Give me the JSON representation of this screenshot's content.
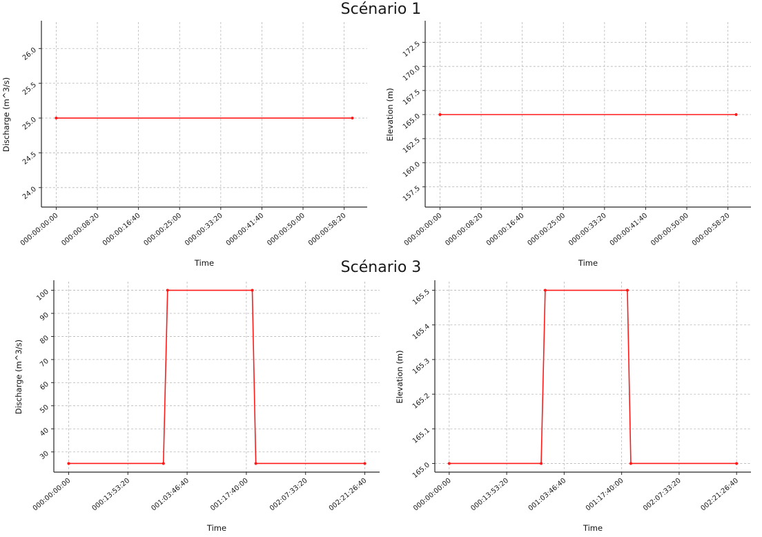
{
  "titles": {
    "scenario1": "Scénario 1",
    "scenario3": "Scénario 3"
  },
  "colors": {
    "line": "#ff1a1a",
    "grid": "#b5b5b5",
    "spine": "#262626",
    "text": "#1a1a1a"
  },
  "chart_data": [
    {
      "id": "scenario1-discharge",
      "type": "line",
      "title": "Scénario 1",
      "xlabel": "Time",
      "ylabel": "Discharge (m^3/s)",
      "grid": true,
      "legend": false,
      "line_color": "#ff1a1a",
      "xlim": [
        -180,
        3780
      ],
      "ylim": [
        23.72,
        26.38
      ],
      "xticks": [
        0,
        500,
        1000,
        1500,
        2000,
        2500,
        3000,
        3500
      ],
      "xtick_labels": [
        "000:00:00:00",
        "000:00:08:20",
        "000:00:16:40",
        "000:00:25:00",
        "000:00:33:20",
        "000:00:41:40",
        "000:00:50:00",
        "000:00:58:20"
      ],
      "yticks": [
        24.0,
        24.5,
        25.0,
        25.5,
        26.0
      ],
      "ytick_labels": [
        "24.0",
        "24.5",
        "25.0",
        "25.5",
        "26.0"
      ],
      "series": [
        {
          "name": "Discharge",
          "x": [
            0,
            3600
          ],
          "y": [
            25.0,
            25.0
          ]
        }
      ]
    },
    {
      "id": "scenario1-elevation",
      "type": "line",
      "title": "Scénario 1",
      "xlabel": "Time",
      "ylabel": "Elevation (m)",
      "grid": true,
      "legend": false,
      "line_color": "#ff1a1a",
      "xlim": [
        -180,
        3780
      ],
      "ylim": [
        155.4,
        174.6
      ],
      "xticks": [
        0,
        500,
        1000,
        1500,
        2000,
        2500,
        3000,
        3500
      ],
      "xtick_labels": [
        "000:00:00:00",
        "000:00:08:20",
        "000:00:16:40",
        "000:00:25:00",
        "000:00:33:20",
        "000:00:41:40",
        "000:00:50:00",
        "000:00:58:20"
      ],
      "yticks": [
        157.5,
        160.0,
        162.5,
        165.0,
        167.5,
        170.0,
        172.5
      ],
      "ytick_labels": [
        "157.5",
        "160.0",
        "162.5",
        "165.0",
        "167.5",
        "170.0",
        "172.5"
      ],
      "series": [
        {
          "name": "Elevation",
          "x": [
            0,
            3600
          ],
          "y": [
            165.0,
            165.0
          ]
        }
      ]
    },
    {
      "id": "scenario3-discharge",
      "type": "line",
      "title": "Scénario 3",
      "xlabel": "Time",
      "ylabel": "Discharge (m^3/s)",
      "grid": true,
      "legend": false,
      "line_color": "#ff1a1a",
      "xlim": [
        -12500,
        262500
      ],
      "ylim": [
        21.25,
        103.75
      ],
      "xticks": [
        0,
        50000,
        100000,
        150000,
        200000,
        250000
      ],
      "xtick_labels": [
        "000:00:00:00",
        "000:13:53:20",
        "001:03:46:40",
        "001:17:40:00",
        "002:07:33:20",
        "002:21:26:40"
      ],
      "yticks": [
        30,
        40,
        50,
        60,
        70,
        80,
        90,
        100
      ],
      "ytick_labels": [
        "30",
        "40",
        "50",
        "60",
        "70",
        "80",
        "90",
        "100"
      ],
      "series": [
        {
          "name": "Discharge",
          "x": [
            0,
            80000,
            83500,
            155000,
            158000,
            250000
          ],
          "y": [
            25,
            25,
            100,
            100,
            25,
            25
          ]
        }
      ]
    },
    {
      "id": "scenario3-elevation",
      "type": "line",
      "title": "Scénario 3",
      "xlabel": "Time",
      "ylabel": "Elevation (m)",
      "grid": true,
      "legend": false,
      "line_color": "#ff1a1a",
      "xlim": [
        -12500,
        262500
      ],
      "ylim": [
        164.975,
        165.525
      ],
      "xticks": [
        0,
        50000,
        100000,
        150000,
        200000,
        250000
      ],
      "xtick_labels": [
        "000:00:00:00",
        "000:13:53:20",
        "001:03:46:40",
        "001:17:40:00",
        "002:07:33:20",
        "002:21:26:40"
      ],
      "yticks": [
        165.0,
        165.1,
        165.2,
        165.3,
        165.4,
        165.5
      ],
      "ytick_labels": [
        "165.0",
        "165.1",
        "165.2",
        "165.3",
        "165.4",
        "165.5"
      ],
      "series": [
        {
          "name": "Elevation",
          "x": [
            0,
            80000,
            83500,
            155000,
            158000,
            250000
          ],
          "y": [
            165.0,
            165.0,
            165.5,
            165.5,
            165.0,
            165.0
          ]
        }
      ]
    }
  ]
}
